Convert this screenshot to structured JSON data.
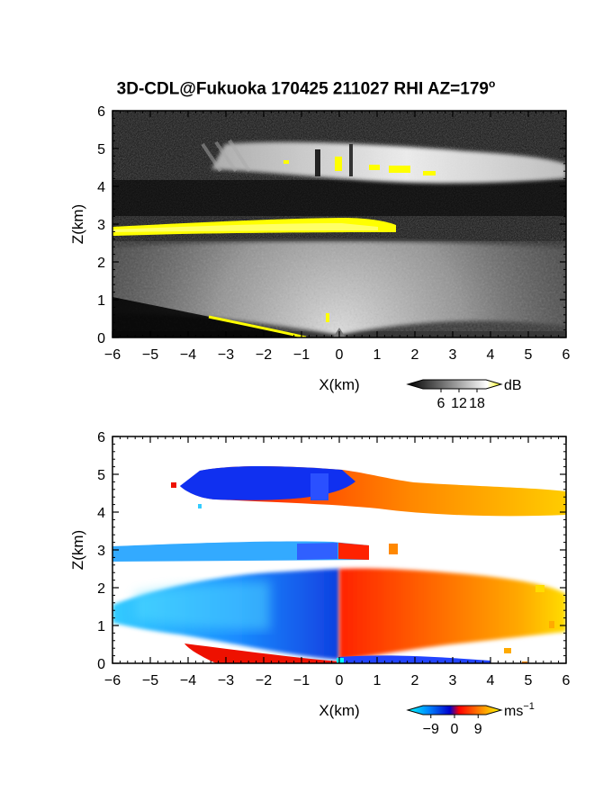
{
  "title": "3D-CDL@Fukuoka 170425 211027 RHI AZ=179",
  "title_sup": "o",
  "chart_data": [
    {
      "type": "heatmap",
      "panel": "top",
      "quantity": "backscatter intensity",
      "x": {
        "label": "X(km)",
        "range": [
          -6,
          6
        ],
        "ticks": [
          -6,
          -5,
          -4,
          -3,
          -2,
          -1,
          0,
          1,
          2,
          3,
          4,
          5,
          6
        ]
      },
      "y": {
        "label": "Z(km)",
        "range": [
          0,
          6
        ],
        "ticks": [
          0,
          1,
          2,
          3,
          4,
          5,
          6
        ]
      },
      "colorbar": {
        "unit": "dB",
        "ticks": [
          6,
          12,
          18
        ],
        "range": [
          0,
          21
        ],
        "colors": [
          "#000000",
          "#ffffff",
          "#ffff00"
        ]
      },
      "layers": [
        {
          "x": [
            -0.9,
            6.0
          ],
          "z": [
            3.9,
            5.0
          ],
          "level": "bright"
        },
        {
          "x": [
            -6.0,
            1.6
          ],
          "z": [
            2.75,
            3.2
          ],
          "level": "saturated"
        },
        {
          "x": [
            -6.0,
            6.0
          ],
          "z": [
            0.0,
            2.5
          ],
          "level": "moderate"
        }
      ],
      "grid": false
    },
    {
      "type": "heatmap",
      "panel": "bottom",
      "quantity": "radial velocity",
      "x": {
        "label": "X(km)",
        "range": [
          -6,
          6
        ],
        "ticks": [
          -6,
          -5,
          -4,
          -3,
          -2,
          -1,
          0,
          1,
          2,
          3,
          4,
          5,
          6
        ]
      },
      "y": {
        "label": "Z(km)",
        "range": [
          0,
          6
        ],
        "ticks": [
          0,
          1,
          2,
          3,
          4,
          5,
          6
        ]
      },
      "colorbar": {
        "unit": "ms",
        "unit_sup": "−1",
        "ticks": [
          "−9",
          "0",
          "9"
        ],
        "range": [
          -12,
          12
        ],
        "colors": [
          "#00ffff",
          "#0088ff",
          "#0000cc",
          "#ff0000",
          "#ff8800",
          "#ffff00"
        ]
      },
      "grid": false
    }
  ]
}
